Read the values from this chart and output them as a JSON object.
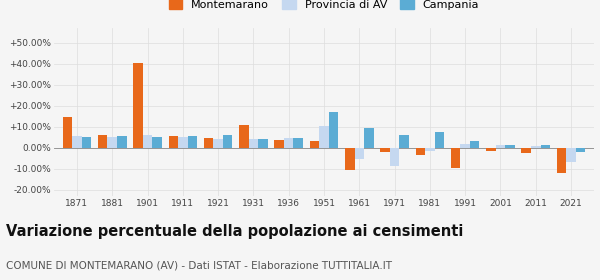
{
  "years": [
    1871,
    1881,
    1901,
    1911,
    1921,
    1931,
    1936,
    1951,
    1961,
    1971,
    1981,
    1991,
    2001,
    2011,
    2021
  ],
  "montemarano": [
    14.5,
    6.0,
    40.5,
    5.5,
    4.5,
    11.0,
    3.5,
    3.0,
    -10.5,
    -2.0,
    -3.5,
    -9.5,
    -1.5,
    -2.5,
    -12.0
  ],
  "provincia_av": [
    5.5,
    5.0,
    6.0,
    5.0,
    4.0,
    4.0,
    4.5,
    10.5,
    -5.5,
    -8.5,
    -1.5,
    2.0,
    1.5,
    1.0,
    -7.0
  ],
  "campania": [
    5.0,
    5.5,
    5.0,
    5.5,
    6.0,
    4.0,
    4.5,
    17.0,
    9.5,
    6.0,
    7.5,
    3.0,
    1.5,
    1.5,
    -2.0
  ],
  "color_montemarano": "#E8681A",
  "color_provincia": "#C5D8F0",
  "color_campania": "#5BACD4",
  "ylim_min": -23,
  "ylim_max": 57,
  "title": "Variazione percentuale della popolazione ai censimenti",
  "subtitle": "COMUNE DI MONTEMARANO (AV) - Dati ISTAT - Elaborazione TUTTITALIA.IT",
  "yticks": [
    -20,
    -10,
    0,
    10,
    20,
    30,
    40,
    50
  ],
  "ytick_labels": [
    "-20.00%",
    "-10.00%",
    "0.00%",
    "+10.00%",
    "+20.00%",
    "+30.00%",
    "+40.00%",
    "+50.00%"
  ],
  "bar_width": 0.27,
  "background_color": "#f5f5f5",
  "grid_color": "#dddddd",
  "legend_labels": [
    "Montemarano",
    "Provincia di AV",
    "Campania"
  ],
  "title_fontsize": 10.5,
  "subtitle_fontsize": 7.5
}
